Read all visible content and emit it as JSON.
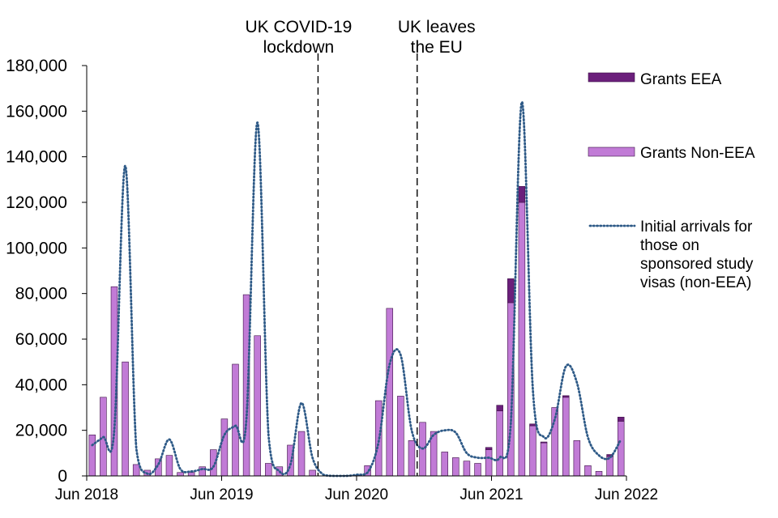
{
  "chart_data": {
    "type": "bar",
    "x": [
      "2018-06",
      "2018-07",
      "2018-08",
      "2018-09",
      "2018-10",
      "2018-11",
      "2018-12",
      "2019-01",
      "2019-02",
      "2019-03",
      "2019-04",
      "2019-05",
      "2019-06",
      "2019-07",
      "2019-08",
      "2019-09",
      "2019-10",
      "2019-11",
      "2019-12",
      "2020-01",
      "2020-02",
      "2020-03",
      "2020-04",
      "2020-05",
      "2020-06",
      "2020-07",
      "2020-08",
      "2020-09",
      "2020-10",
      "2020-11",
      "2020-12",
      "2021-01",
      "2021-02",
      "2021-03",
      "2021-04",
      "2021-05",
      "2021-06",
      "2021-07",
      "2021-08",
      "2021-09",
      "2021-10",
      "2021-11",
      "2021-12",
      "2022-01",
      "2022-02",
      "2022-03",
      "2022-04",
      "2022-05",
      "2022-06"
    ],
    "x_tick_labels": [
      "Jun 2018",
      "Jun 2019",
      "Jun 2020",
      "Jun 2021",
      "Jun 2022"
    ],
    "series": [
      {
        "name": "Grants EEA",
        "type": "bar",
        "color": "#6b1f7b",
        "values": [
          0,
          0,
          0,
          0,
          0,
          0,
          0,
          0,
          0,
          0,
          0,
          0,
          0,
          0,
          0,
          0,
          0,
          0,
          0,
          0,
          0,
          0,
          0,
          0,
          0,
          0,
          0,
          0,
          0,
          0,
          0,
          0,
          0,
          0,
          0,
          0,
          1000,
          2500,
          10500,
          7000,
          800,
          400,
          0,
          700,
          0,
          0,
          0,
          900,
          1800
        ]
      },
      {
        "name": "Grants Non-EEA",
        "type": "bar",
        "color": "#c17bd6",
        "values": [
          18000,
          34500,
          83000,
          50000,
          5000,
          2500,
          7500,
          9000,
          1500,
          1500,
          4000,
          11500,
          25000,
          49000,
          79500,
          61500,
          5500,
          4000,
          13500,
          19500,
          2500,
          0,
          0,
          200,
          300,
          4500,
          33000,
          73500,
          35000,
          15500,
          23500,
          19500,
          10500,
          8000,
          6500,
          5500,
          11500,
          28500,
          76000,
          120000,
          22000,
          14500,
          30000,
          34500,
          15500,
          4500,
          2000,
          8500,
          24000
        ]
      },
      {
        "name": "Initial arrivals for those on sponsored study visas (non-EEA)",
        "type": "line",
        "style": "dotted",
        "color": "#2e5a87",
        "values": [
          13500,
          17000,
          20000,
          136000,
          12000,
          1000,
          5000,
          16000,
          3000,
          2000,
          3000,
          4000,
          18000,
          22000,
          25000,
          155000,
          18000,
          2000,
          5000,
          32000,
          8000,
          500,
          0,
          0,
          500,
          1500,
          15000,
          49000,
          53000,
          20000,
          12000,
          18000,
          20000,
          19000,
          10000,
          8000,
          8000,
          8000,
          23000,
          164000,
          38000,
          17000,
          25000,
          48000,
          41000,
          17000,
          9000,
          8000,
          16000
        ]
      }
    ],
    "ylim": [
      0,
      180000
    ],
    "y_ticks": [
      0,
      20000,
      40000,
      60000,
      80000,
      100000,
      120000,
      140000,
      160000,
      180000
    ],
    "y_tick_labels": [
      "0",
      "20,000",
      "40,000",
      "60,000",
      "80,000",
      "100,000",
      "120,000",
      "140,000",
      "160,000",
      "180,000"
    ],
    "xlabel": "",
    "ylabel": "",
    "title": "",
    "grid": false,
    "legend_position": "right",
    "annotations": [
      {
        "x": "2020-03",
        "lines": [
          "UK COVID-19",
          "lockdown"
        ],
        "style": "dashed"
      },
      {
        "x": "2020-12",
        "lines": [
          "UK leaves",
          "the EU"
        ],
        "style": "dashed"
      }
    ]
  }
}
